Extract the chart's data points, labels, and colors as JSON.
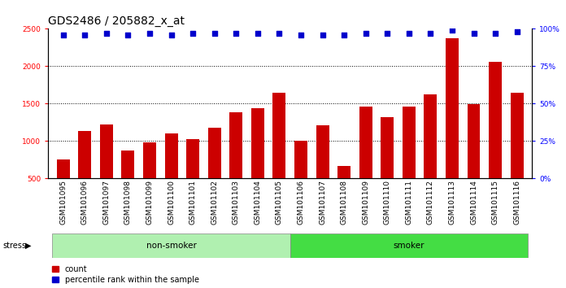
{
  "title": "GDS2486 / 205882_x_at",
  "samples": [
    "GSM101095",
    "GSM101096",
    "GSM101097",
    "GSM101098",
    "GSM101099",
    "GSM101100",
    "GSM101101",
    "GSM101102",
    "GSM101103",
    "GSM101104",
    "GSM101105",
    "GSM101106",
    "GSM101107",
    "GSM101108",
    "GSM101109",
    "GSM101110",
    "GSM101111",
    "GSM101112",
    "GSM101113",
    "GSM101114",
    "GSM101115",
    "GSM101116"
  ],
  "bar_values": [
    760,
    1140,
    1220,
    880,
    980,
    1100,
    1030,
    1180,
    1380,
    1440,
    1650,
    1010,
    1210,
    670,
    1460,
    1320,
    1460,
    1620,
    2370,
    1490,
    2060,
    1650
  ],
  "percentile_values": [
    96,
    96,
    97,
    96,
    97,
    96,
    97,
    97,
    97,
    97,
    97,
    96,
    96,
    96,
    97,
    97,
    97,
    97,
    99,
    97,
    97,
    98
  ],
  "groups": [
    {
      "label": "non-smoker",
      "start": 0,
      "end": 11,
      "color": "#b0f0b0"
    },
    {
      "label": "smoker",
      "start": 11,
      "end": 22,
      "color": "#44dd44"
    }
  ],
  "bar_color": "#CC0000",
  "dot_color": "#0000CC",
  "ylim_left": [
    500,
    2500
  ],
  "ylim_right": [
    0,
    100
  ],
  "yticks_left": [
    500,
    1000,
    1500,
    2000,
    2500
  ],
  "yticks_right": [
    0,
    25,
    50,
    75,
    100
  ],
  "grid_values": [
    1000,
    1500,
    2000
  ],
  "stress_label": "stress",
  "legend_count_label": "count",
  "legend_pct_label": "percentile rank within the sample",
  "title_fontsize": 10,
  "tick_fontsize": 6.5,
  "label_fontsize": 8
}
